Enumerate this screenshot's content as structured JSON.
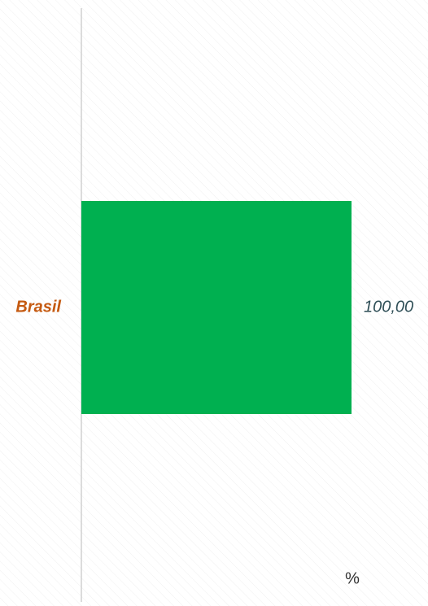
{
  "chart_data": {
    "type": "barh",
    "categories": [
      "Brasil"
    ],
    "values": [
      100
    ],
    "value_labels": [
      "100,00"
    ],
    "color": "#00b050",
    "xlim": [
      0,
      100
    ],
    "xlabel": "%"
  }
}
